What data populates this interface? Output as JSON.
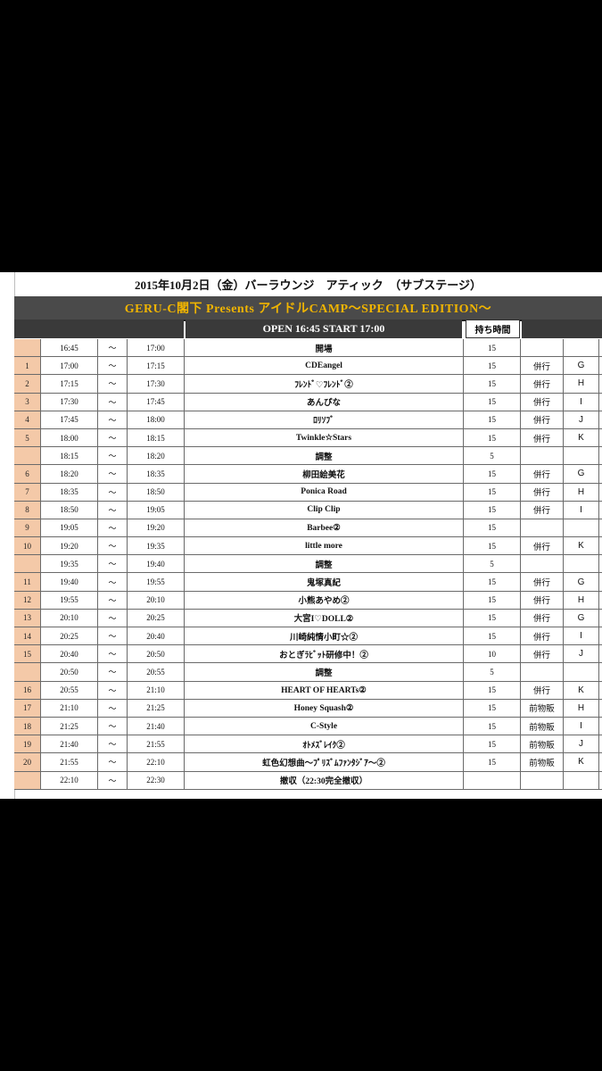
{
  "sheet": {
    "title": "2015年10月2日（金）バーラウンジ　アティック　（サブステージ）",
    "banner": "GERU-C閣下 Presents アイドルCAMP〜SPECIAL EDITION〜",
    "open_start": "OPEN 16:45  START 17:00",
    "duration_header": "持ち時間"
  },
  "rows": [
    {
      "num": "",
      "start": "16:45",
      "tilde": "〜",
      "end": "17:00",
      "name": "開場",
      "dur": "15",
      "con": "",
      "group": ""
    },
    {
      "num": "1",
      "start": "17:00",
      "tilde": "〜",
      "end": "17:15",
      "name": "CDEangel",
      "dur": "15",
      "con": "併行",
      "group": "G"
    },
    {
      "num": "2",
      "start": "17:15",
      "tilde": "〜",
      "end": "17:30",
      "name": "ﾌﾚﾝﾄﾞ♡ﾌﾚﾝﾄﾞ②",
      "dur": "15",
      "con": "併行",
      "group": "H"
    },
    {
      "num": "3",
      "start": "17:30",
      "tilde": "〜",
      "end": "17:45",
      "name": "あんぴな",
      "dur": "15",
      "con": "併行",
      "group": "I"
    },
    {
      "num": "4",
      "start": "17:45",
      "tilde": "〜",
      "end": "18:00",
      "name": "ﾛﾘｿﾌﾞ",
      "dur": "15",
      "con": "併行",
      "group": "J"
    },
    {
      "num": "5",
      "start": "18:00",
      "tilde": "〜",
      "end": "18:15",
      "name": "Twinkle☆Stars",
      "dur": "15",
      "con": "併行",
      "group": "K"
    },
    {
      "num": "",
      "start": "18:15",
      "tilde": "〜",
      "end": "18:20",
      "name": "調整",
      "dur": "5",
      "con": "",
      "group": ""
    },
    {
      "num": "6",
      "start": "18:20",
      "tilde": "〜",
      "end": "18:35",
      "name": "柳田絵美花",
      "dur": "15",
      "con": "併行",
      "group": "G"
    },
    {
      "num": "7",
      "start": "18:35",
      "tilde": "〜",
      "end": "18:50",
      "name": "Ponica Road",
      "dur": "15",
      "con": "併行",
      "group": "H"
    },
    {
      "num": "8",
      "start": "18:50",
      "tilde": "〜",
      "end": "19:05",
      "name": "Clip Clip",
      "dur": "15",
      "con": "併行",
      "group": "I"
    },
    {
      "num": "9",
      "start": "19:05",
      "tilde": "〜",
      "end": "19:20",
      "name": "Barbee②",
      "dur": "15",
      "con": "",
      "group": ""
    },
    {
      "num": "10",
      "start": "19:20",
      "tilde": "〜",
      "end": "19:35",
      "name": "little more",
      "dur": "15",
      "con": "併行",
      "group": "K"
    },
    {
      "num": "",
      "start": "19:35",
      "tilde": "〜",
      "end": "19:40",
      "name": "調整",
      "dur": "5",
      "con": "",
      "group": ""
    },
    {
      "num": "11",
      "start": "19:40",
      "tilde": "〜",
      "end": "19:55",
      "name": "鬼塚真紀",
      "dur": "15",
      "con": "併行",
      "group": "G"
    },
    {
      "num": "12",
      "start": "19:55",
      "tilde": "〜",
      "end": "20:10",
      "name": "小熊あやめ②",
      "dur": "15",
      "con": "併行",
      "group": "H"
    },
    {
      "num": "13",
      "start": "20:10",
      "tilde": "〜",
      "end": "20:25",
      "name": "大宮I♡DOLL②",
      "dur": "15",
      "con": "併行",
      "group": "G"
    },
    {
      "num": "14",
      "start": "20:25",
      "tilde": "〜",
      "end": "20:40",
      "name": "川崎純情小町☆②",
      "dur": "15",
      "con": "併行",
      "group": "I"
    },
    {
      "num": "15",
      "start": "20:40",
      "tilde": "〜",
      "end": "20:50",
      "name": "おとぎﾗﾋﾞｯﾄ研修中！②",
      "dur": "10",
      "con": "併行",
      "group": "J"
    },
    {
      "num": "",
      "start": "20:50",
      "tilde": "〜",
      "end": "20:55",
      "name": "調整",
      "dur": "5",
      "con": "",
      "group": ""
    },
    {
      "num": "16",
      "start": "20:55",
      "tilde": "〜",
      "end": "21:10",
      "name": "HEART OF HEARTs②",
      "dur": "15",
      "con": "併行",
      "group": "K"
    },
    {
      "num": "17",
      "start": "21:10",
      "tilde": "〜",
      "end": "21:25",
      "name": "Honey Squash②",
      "dur": "15",
      "con": "前物販",
      "group": "H"
    },
    {
      "num": "18",
      "start": "21:25",
      "tilde": "〜",
      "end": "21:40",
      "name": "C-Style",
      "dur": "15",
      "con": "前物販",
      "group": "I"
    },
    {
      "num": "19",
      "start": "21:40",
      "tilde": "〜",
      "end": "21:55",
      "name": "ｵﾄﾒｽﾞﾚｲｸ②",
      "dur": "15",
      "con": "前物販",
      "group": "J"
    },
    {
      "num": "20",
      "start": "21:55",
      "tilde": "〜",
      "end": "22:10",
      "name": "虹色幻想曲〜ﾌﾟﾘｽﾞﾑﾌｧﾝﾀｼﾞｱ〜②",
      "dur": "15",
      "con": "前物販",
      "group": "K"
    },
    {
      "num": "",
      "start": "22:10",
      "tilde": "〜",
      "end": "22:30",
      "name": "撤収（22:30完全撤収）",
      "dur": "",
      "con": "",
      "group": ""
    }
  ],
  "colors": {
    "background": "#000000",
    "banner_bg": "#4a4a4a",
    "banner_text": "#f0b400",
    "number_cell": "#f4c9a8"
  }
}
